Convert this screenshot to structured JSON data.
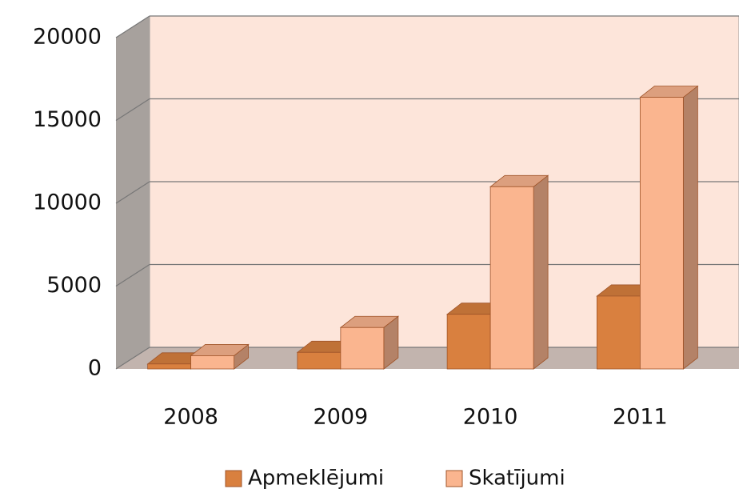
{
  "chart_data": {
    "type": "bar3d",
    "categories": [
      "2008",
      "2009",
      "2010",
      "2011"
    ],
    "series": [
      {
        "name": "Apmeklējumi",
        "color": "#d9803f",
        "values": [
          300,
          1000,
          3300,
          4400
        ]
      },
      {
        "name": "Skatījumi",
        "color": "#fab58f",
        "values": [
          800,
          2500,
          11000,
          16400
        ]
      }
    ],
    "ylim": [
      0,
      20000
    ],
    "yticks": [
      0,
      5000,
      10000,
      15000,
      20000
    ],
    "grid": true,
    "legend": "bottom"
  }
}
